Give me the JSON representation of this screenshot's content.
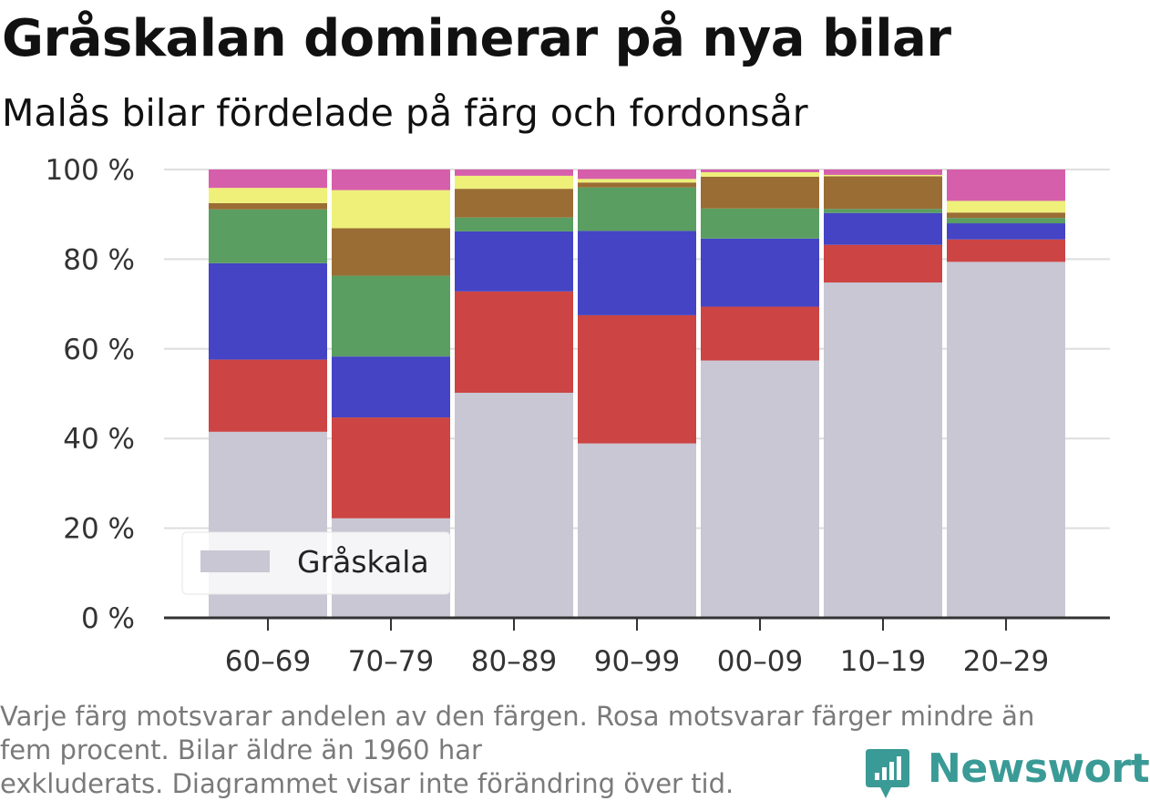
{
  "title": "Gråskalan dominerar på nya bilar",
  "subtitle": "Malås bilar fördelade på färg och fordonsår",
  "caption_lines": [
    "Varje färg motsvarar andelen av den färgen. Rosa motsvarar färger mindre än",
    "fem procent. Bilar äldre än 1960 har",
    "exkluderats. Diagrammet visar inte förändring över tid."
  ],
  "brand": {
    "name": "Newsworthy",
    "color": "#3a9a96",
    "icon": "newsworthy-logo-icon"
  },
  "chart_data": {
    "type": "bar",
    "stacked": true,
    "categories": [
      "60–69",
      "70–79",
      "80–89",
      "90–99",
      "00–09",
      "10–19",
      "20–29"
    ],
    "ylim": [
      0,
      100
    ],
    "yticks": [
      0,
      20,
      40,
      60,
      80,
      100
    ],
    "ytick_labels": [
      "0 %",
      "20 %",
      "40 %",
      "60 %",
      "80 %",
      "100 %"
    ],
    "grid": true,
    "legend": {
      "placement": "bottom-left",
      "entries": [
        "Gråskala"
      ]
    },
    "series": [
      {
        "name": "Gråskala",
        "color": "#c8c7d3",
        "values": [
          41.5,
          22.2,
          50.2,
          38.9,
          57.4,
          74.8,
          79.4
        ]
      },
      {
        "color": "#cc4444",
        "values": [
          16.1,
          22.5,
          22.6,
          28.6,
          12.0,
          8.4,
          5.0
        ]
      },
      {
        "color": "#4444c4",
        "values": [
          21.5,
          13.6,
          13.4,
          18.8,
          15.2,
          7.1,
          3.6
        ]
      },
      {
        "color": "#5a9e62",
        "values": [
          12.0,
          18.0,
          3.1,
          9.7,
          6.7,
          0.9,
          1.2
        ]
      },
      {
        "color": "#9a6d34",
        "values": [
          1.4,
          10.6,
          6.4,
          1.1,
          7.1,
          7.3,
          1.2
        ]
      },
      {
        "color": "#eef07a",
        "values": [
          3.4,
          8.5,
          2.9,
          0.8,
          1.0,
          0.3,
          2.6
        ]
      },
      {
        "color": "#d65fab",
        "values": [
          4.1,
          4.6,
          1.4,
          2.1,
          0.6,
          1.2,
          7.0
        ]
      }
    ]
  }
}
